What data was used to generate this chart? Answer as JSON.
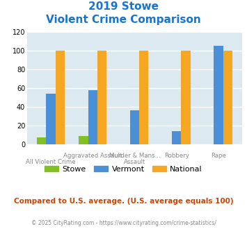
{
  "title_line1": "2019 Stowe",
  "title_line2": "Violent Crime Comparison",
  "title_color": "#1874cd",
  "stowe": [
    7,
    9,
    0,
    0,
    0
  ],
  "vermont": [
    54,
    58,
    36,
    14,
    105
  ],
  "national": [
    100,
    100,
    100,
    100,
    100
  ],
  "stowe_color": "#80c020",
  "vermont_color": "#4a90d9",
  "national_color": "#f5a623",
  "ylim": [
    0,
    120
  ],
  "yticks": [
    0,
    20,
    40,
    60,
    80,
    100,
    120
  ],
  "bar_width": 0.22,
  "bg_color": "#dce9f0",
  "grid_color": "#ffffff",
  "xtick_top": [
    "",
    "Aggravated Assault",
    "Murder & Mans...",
    "Robbery",
    "Rape"
  ],
  "xtick_bottom": [
    "All Violent Crime",
    "",
    "Assault",
    "",
    ""
  ],
  "footer_note": "Compared to U.S. average. (U.S. average equals 100)",
  "footer_note_color": "#cc4400",
  "copyright": "© 2025 CityRating.com - https://www.cityrating.com/crime-statistics/",
  "copyright_color": "#888888"
}
